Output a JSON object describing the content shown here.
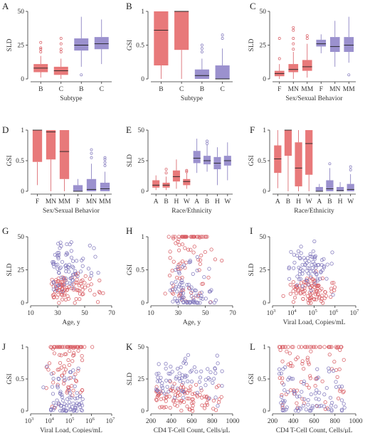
{
  "colors": {
    "red": "#E8797A",
    "blue": "#9B91CE",
    "redStroke": "#D85C63",
    "blueStroke": "#8077BC",
    "median": "#222222",
    "axis": "#333333"
  },
  "chart_data": [
    {
      "label": "A",
      "type": "box",
      "ylabel": "SLD",
      "xlabel": "Subtype",
      "yticks": [
        "0",
        "25",
        "50"
      ],
      "ylim": [
        0,
        50
      ],
      "categories": [
        "B",
        "C",
        "B",
        "C"
      ],
      "boxes": [
        {
          "color": "red",
          "min": 1,
          "q1": 5,
          "median": 8,
          "q3": 11,
          "max": 17,
          "outliers": [
            20,
            22,
            23,
            27
          ]
        },
        {
          "color": "red",
          "min": 0,
          "q1": 3,
          "median": 6,
          "q3": 9,
          "max": 15,
          "outliers": [
            20,
            22,
            26,
            30
          ]
        },
        {
          "color": "blue",
          "min": 9,
          "q1": 21,
          "median": 25,
          "q3": 30,
          "max": 46,
          "outliers": [
            3
          ]
        },
        {
          "color": "blue",
          "min": 11,
          "q1": 22,
          "median": 26,
          "q3": 31,
          "max": 44,
          "outliers": []
        }
      ]
    },
    {
      "label": "B",
      "type": "box",
      "ylabel": "GSI",
      "xlabel": "Subtype",
      "yticks": [
        "0",
        "0.5",
        "1"
      ],
      "ylim": [
        0,
        1
      ],
      "categories": [
        "B",
        "C",
        "B",
        "C"
      ],
      "boxes": [
        {
          "color": "red",
          "min": 0,
          "q1": 0.2,
          "median": 0.72,
          "q3": 1,
          "max": 1,
          "outliers": []
        },
        {
          "color": "red",
          "min": 0,
          "q1": 0.43,
          "median": 1,
          "q3": 1,
          "max": 1,
          "outliers": []
        },
        {
          "color": "blue",
          "min": 0,
          "q1": 0,
          "median": 0.05,
          "q3": 0.14,
          "max": 0.3,
          "outliers": [
            0.4,
            0.45,
            0.5
          ]
        },
        {
          "color": "blue",
          "min": 0,
          "q1": 0,
          "median": 0,
          "q3": 0.2,
          "max": 0.45,
          "outliers": [
            0.6,
            0.65
          ]
        }
      ]
    },
    {
      "label": "C",
      "type": "box",
      "ylabel": "SLD",
      "xlabel": "Sex/Sexual Behavior",
      "yticks": [
        "0",
        "25",
        "50"
      ],
      "ylim": [
        0,
        50
      ],
      "categories": [
        "F",
        "MN",
        "MM",
        "F",
        "MN",
        "MM"
      ],
      "boxes": [
        {
          "color": "red",
          "min": 0,
          "q1": 2,
          "median": 4,
          "q3": 6,
          "max": 11,
          "outliers": [
            15,
            30
          ]
        },
        {
          "color": "red",
          "min": 0,
          "q1": 5,
          "median": 7,
          "q3": 11,
          "max": 20,
          "outliers": [
            22,
            26,
            30,
            36,
            38
          ]
        },
        {
          "color": "red",
          "min": 1,
          "q1": 6,
          "median": 9,
          "q3": 14,
          "max": 26,
          "outliers": [
            30,
            32
          ]
        },
        {
          "color": "blue",
          "min": 19,
          "q1": 24,
          "median": 26,
          "q3": 29,
          "max": 33,
          "outliers": []
        },
        {
          "color": "blue",
          "min": 9,
          "q1": 20,
          "median": 24,
          "q3": 31,
          "max": 43,
          "outliers": []
        },
        {
          "color": "blue",
          "min": 12,
          "q1": 20,
          "median": 25,
          "q3": 31,
          "max": 46,
          "outliers": [
            3
          ]
        }
      ]
    },
    {
      "label": "D",
      "type": "box",
      "ylabel": "GSI",
      "xlabel": "Sex/Sexual Behavior",
      "yticks": [
        "0",
        "0.5",
        "1"
      ],
      "ylim": [
        0,
        1
      ],
      "categories": [
        "F",
        "MN",
        "MM",
        "F",
        "MN",
        "MM"
      ],
      "boxes": [
        {
          "color": "red",
          "min": 0.1,
          "q1": 0.48,
          "median": 1,
          "q3": 1,
          "max": 1,
          "outliers": []
        },
        {
          "color": "red",
          "min": 0,
          "q1": 0.52,
          "median": 0.97,
          "q3": 1,
          "max": 1,
          "outliers": []
        },
        {
          "color": "red",
          "min": 0,
          "q1": 0.2,
          "median": 0.65,
          "q3": 1,
          "max": 1,
          "outliers": []
        },
        {
          "color": "blue",
          "min": 0,
          "q1": 0,
          "median": 0,
          "q3": 0.1,
          "max": 0.2,
          "outliers": []
        },
        {
          "color": "blue",
          "min": 0,
          "q1": 0,
          "median": 0.03,
          "q3": 0.2,
          "max": 0.45,
          "outliers": [
            0.55,
            0.62,
            0.68
          ]
        },
        {
          "color": "blue",
          "min": 0,
          "q1": 0,
          "median": 0.04,
          "q3": 0.14,
          "max": 0.32,
          "outliers": [
            0.42,
            0.47,
            0.52,
            0.55
          ]
        }
      ]
    },
    {
      "label": "E",
      "type": "box",
      "ylabel": "SLD",
      "xlabel": "Race/Ethnicity",
      "yticks": [
        "0",
        "25",
        "50"
      ],
      "ylim": [
        0,
        50
      ],
      "categories": [
        "A",
        "B",
        "H",
        "W",
        "A",
        "B",
        "H",
        "W"
      ],
      "boxes": [
        {
          "color": "red",
          "min": 1,
          "q1": 3,
          "median": 5,
          "q3": 9,
          "max": 13,
          "outliers": []
        },
        {
          "color": "red",
          "min": 1,
          "q1": 3,
          "median": 5,
          "q3": 7,
          "max": 12,
          "outliers": [
            15,
            18
          ]
        },
        {
          "color": "red",
          "min": 2,
          "q1": 8,
          "median": 12,
          "q3": 17,
          "max": 26,
          "outliers": []
        },
        {
          "color": "red",
          "min": 2,
          "q1": 5,
          "median": 8,
          "q3": 10,
          "max": 15,
          "outliers": [
            16,
            17
          ]
        },
        {
          "color": "blue",
          "min": 15,
          "q1": 23,
          "median": 27,
          "q3": 33,
          "max": 43,
          "outliers": []
        },
        {
          "color": "blue",
          "min": 16,
          "q1": 22,
          "median": 25,
          "q3": 29,
          "max": 38,
          "outliers": [
            39,
            41
          ]
        },
        {
          "color": "blue",
          "min": 5,
          "q1": 18,
          "median": 23,
          "q3": 28,
          "max": 36,
          "outliers": []
        },
        {
          "color": "blue",
          "min": 9,
          "q1": 21,
          "median": 25,
          "q3": 29,
          "max": 40,
          "outliers": []
        }
      ]
    },
    {
      "label": "F",
      "type": "box",
      "ylabel": "GSI",
      "xlabel": "Race/Ethnicity",
      "yticks": [
        "0",
        "0.5",
        "1"
      ],
      "ylim": [
        0,
        1
      ],
      "categories": [
        "A",
        "B",
        "H",
        "W",
        "A",
        "B",
        "H",
        "W"
      ],
      "boxes": [
        {
          "color": "red",
          "min": 0.05,
          "q1": 0.3,
          "median": 0.53,
          "q3": 0.75,
          "max": 1,
          "outliers": []
        },
        {
          "color": "red",
          "min": 0,
          "q1": 0.58,
          "median": 1,
          "q3": 1,
          "max": 1,
          "outliers": []
        },
        {
          "color": "red",
          "min": 0,
          "q1": 0.08,
          "median": 0.38,
          "q3": 0.8,
          "max": 1,
          "outliers": []
        },
        {
          "color": "red",
          "min": 0,
          "q1": 0.27,
          "median": 0.78,
          "q3": 1,
          "max": 1,
          "outliers": []
        },
        {
          "color": "blue",
          "min": 0,
          "q1": 0,
          "median": 0,
          "q3": 0.07,
          "max": 0.12,
          "outliers": []
        },
        {
          "color": "blue",
          "min": 0,
          "q1": 0,
          "median": 0.04,
          "q3": 0.18,
          "max": 0.38,
          "outliers": [
            0.45
          ]
        },
        {
          "color": "blue",
          "min": 0,
          "q1": 0,
          "median": 0.01,
          "q3": 0.07,
          "max": 0.15,
          "outliers": []
        },
        {
          "color": "blue",
          "min": 0,
          "q1": 0,
          "median": 0.03,
          "q3": 0.12,
          "max": 0.28,
          "outliers": [
            0.35,
            0.4
          ]
        }
      ]
    },
    {
      "label": "G",
      "type": "scatter",
      "ylabel": "SLD",
      "xlabel": "Age, y",
      "xlim": [
        10,
        70
      ],
      "ylim": [
        0,
        50
      ],
      "xticks": [
        {
          "v": 10,
          "t": "10"
        },
        {
          "v": 30,
          "t": "30"
        },
        {
          "v": 50,
          "t": "50"
        },
        {
          "v": 70,
          "t": "70"
        }
      ],
      "yticks": [
        "0",
        "25",
        "50"
      ],
      "xmode": "linear",
      "ymode": "sld"
    },
    {
      "label": "H",
      "type": "scatter",
      "ylabel": "GSI",
      "xlabel": "Age, y",
      "xlim": [
        10,
        70
      ],
      "ylim": [
        0,
        1
      ],
      "xticks": [
        {
          "v": 10,
          "t": "10"
        },
        {
          "v": 30,
          "t": "30"
        },
        {
          "v": 50,
          "t": "50"
        },
        {
          "v": 70,
          "t": "70"
        }
      ],
      "yticks": [
        "0",
        "0.5",
        "1"
      ],
      "xmode": "linear",
      "ymode": "gsi"
    },
    {
      "label": "I",
      "type": "scatter",
      "ylabel": "SLD",
      "xlabel": "Viral Load, Copies/mL",
      "xlim": [
        3,
        7
      ],
      "ylim": [
        0,
        50
      ],
      "xticks": [
        {
          "v": 3,
          "b": "10",
          "e": "3"
        },
        {
          "v": 4,
          "b": "10",
          "e": "4"
        },
        {
          "v": 5,
          "b": "10",
          "e": "5"
        },
        {
          "v": 6,
          "b": "10",
          "e": "6"
        },
        {
          "v": 7,
          "b": "10",
          "e": "7"
        }
      ],
      "yticks": [
        "0",
        "25",
        "50"
      ],
      "xmode": "log",
      "ymode": "sld"
    },
    {
      "label": "J",
      "type": "scatter",
      "ylabel": "GSI",
      "xlabel": "Viral Load, Copies/mL",
      "xlim": [
        3,
        7
      ],
      "ylim": [
        0,
        1
      ],
      "xticks": [
        {
          "v": 3,
          "b": "10",
          "e": "3"
        },
        {
          "v": 4,
          "b": "10",
          "e": "4"
        },
        {
          "v": 5,
          "b": "10",
          "e": "5"
        },
        {
          "v": 6,
          "b": "10",
          "e": "6"
        },
        {
          "v": 7,
          "b": "10",
          "e": "7"
        }
      ],
      "yticks": [
        "0",
        "0.5",
        "1"
      ],
      "xmode": "log",
      "ymode": "gsi"
    },
    {
      "label": "K",
      "type": "scatter",
      "ylabel": "SLD",
      "xlabel": "CD4 T-Cell Count, Cells/μL",
      "xlim": [
        200,
        1000
      ],
      "ylim": [
        0,
        50
      ],
      "xticks": [
        {
          "v": 200,
          "t": "200"
        },
        {
          "v": 400,
          "t": "400"
        },
        {
          "v": 600,
          "t": "600"
        },
        {
          "v": 800,
          "t": "800"
        },
        {
          "v": 1000,
          "t": "1000"
        }
      ],
      "yticks": [
        "0",
        "25",
        "50"
      ],
      "xmode": "cd4",
      "ymode": "sld"
    },
    {
      "label": "L",
      "type": "scatter",
      "ylabel": "GSI",
      "xlabel": "CD4 T-Cell Count, Cells/μL",
      "xlim": [
        200,
        1000
      ],
      "ylim": [
        0,
        1
      ],
      "xticks": [
        {
          "v": 200,
          "t": "200"
        },
        {
          "v": 400,
          "t": "400"
        },
        {
          "v": 600,
          "t": "600"
        },
        {
          "v": 800,
          "t": "800"
        },
        {
          "v": 1000,
          "t": "1000"
        }
      ],
      "yticks": [
        "0",
        "0.5",
        "1"
      ],
      "xmode": "cd4",
      "ymode": "gsi"
    }
  ]
}
